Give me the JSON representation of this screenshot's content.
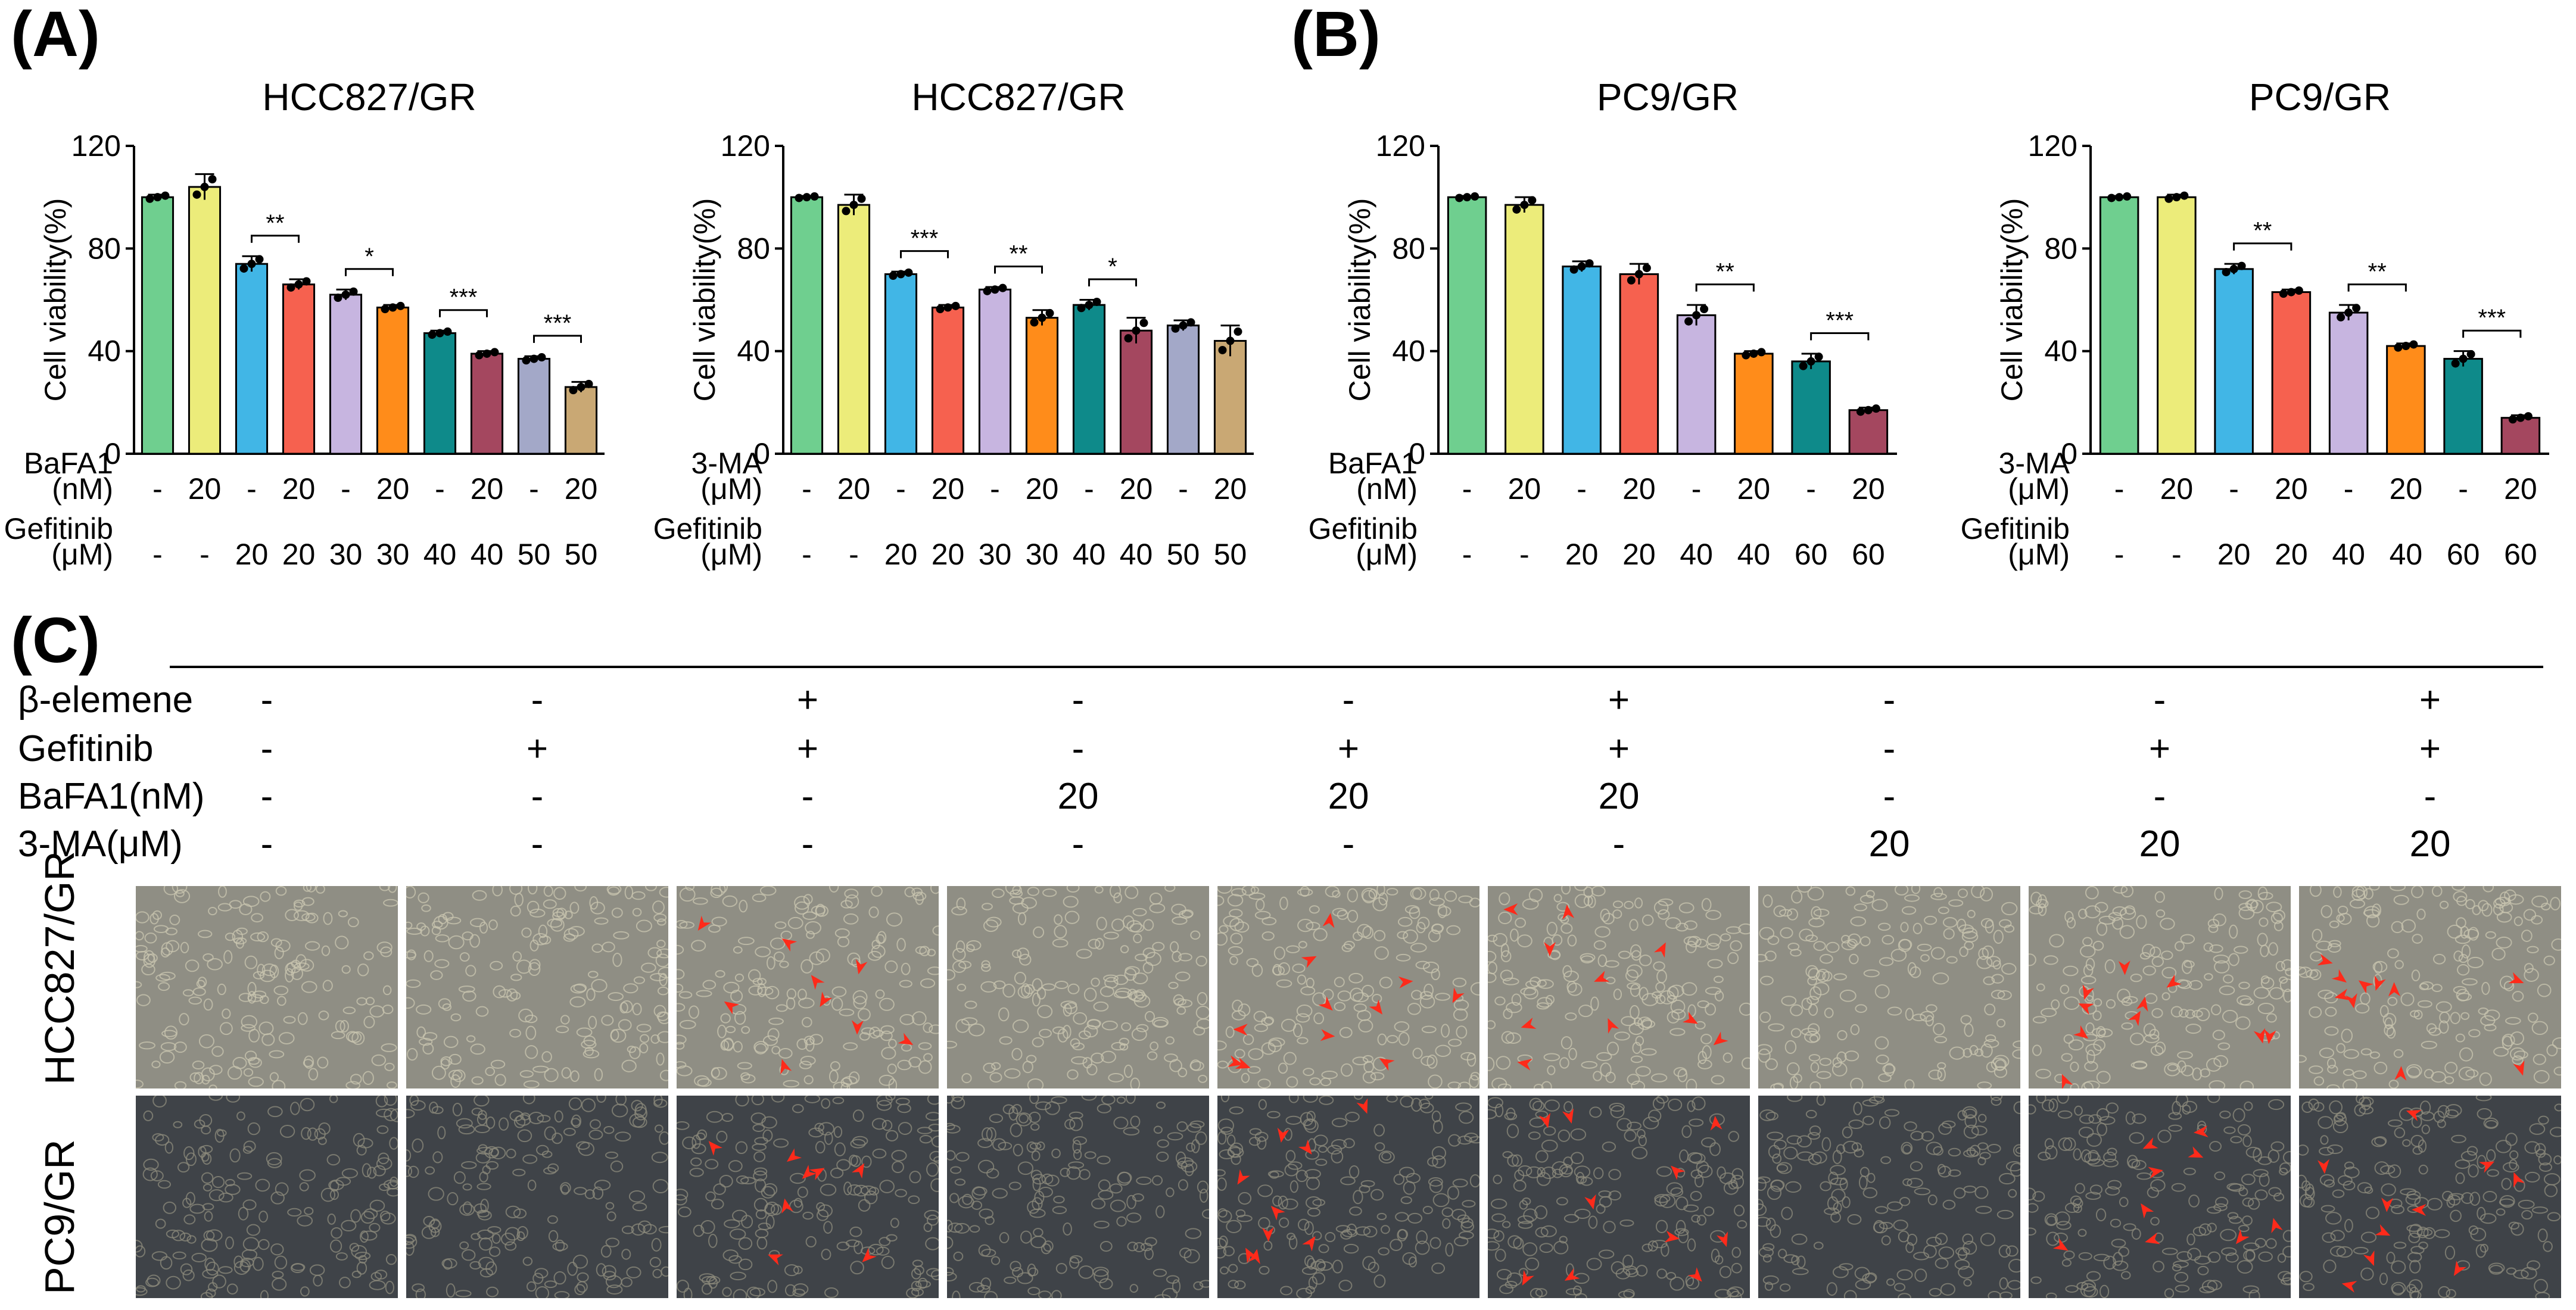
{
  "panels": {
    "a": "(A)",
    "b": "(B)",
    "c": "(C)"
  },
  "chart_data": [
    {
      "type": "bar",
      "title": "HCC827/GR",
      "ylabel": "Cell viability(%)",
      "ylim": [
        0,
        120
      ],
      "yticks": [
        0,
        40,
        80,
        120
      ],
      "values": [
        100,
        104,
        74,
        66,
        62,
        57,
        47,
        39,
        37,
        26
      ],
      "errors": [
        1,
        5,
        3,
        2,
        2,
        1,
        1,
        1,
        1,
        2
      ],
      "colors": [
        "#6fcf8f",
        "#ecec7a",
        "#41b6e6",
        "#f6614f",
        "#c7b5e0",
        "#ff8c1a",
        "#0e8a8a",
        "#a4475f",
        "#a3a8c8",
        "#c9a874"
      ],
      "row_labels": [
        [
          "BaFA1",
          "(nM)"
        ],
        [
          "Gefitinib",
          "(μM)"
        ]
      ],
      "rows": [
        [
          "-",
          "20",
          "-",
          "20",
          "-",
          "20",
          "-",
          "20",
          "-",
          "20"
        ],
        [
          "-",
          "-",
          "20",
          "20",
          "30",
          "30",
          "40",
          "40",
          "50",
          "50"
        ]
      ],
      "sig": [
        {
          "i": 2,
          "j": 3,
          "text": "**"
        },
        {
          "i": 4,
          "j": 5,
          "text": "*"
        },
        {
          "i": 6,
          "j": 7,
          "text": "***"
        },
        {
          "i": 8,
          "j": 9,
          "text": "***"
        }
      ]
    },
    {
      "type": "bar",
      "title": "HCC827/GR",
      "ylabel": "Cell viability(%)",
      "ylim": [
        0,
        120
      ],
      "yticks": [
        0,
        40,
        80,
        120
      ],
      "values": [
        100,
        97,
        70,
        57,
        64,
        53,
        58,
        48,
        50,
        44
      ],
      "errors": [
        0.5,
        4,
        1,
        1,
        1,
        3,
        2,
        5,
        2,
        6
      ],
      "colors": [
        "#6fcf8f",
        "#ecec7a",
        "#41b6e6",
        "#f6614f",
        "#c7b5e0",
        "#ff8c1a",
        "#0e8a8a",
        "#a4475f",
        "#a3a8c8",
        "#c9a874"
      ],
      "row_labels": [
        [
          "3-MA",
          "(μM)"
        ],
        [
          "Gefitinib",
          "(μM)"
        ]
      ],
      "rows": [
        [
          "-",
          "20",
          "-",
          "20",
          "-",
          "20",
          "-",
          "20",
          "-",
          "20"
        ],
        [
          "-",
          "-",
          "20",
          "20",
          "30",
          "30",
          "40",
          "40",
          "50",
          "50"
        ]
      ],
      "sig": [
        {
          "i": 2,
          "j": 3,
          "text": "***"
        },
        {
          "i": 4,
          "j": 5,
          "text": "**"
        },
        {
          "i": 6,
          "j": 7,
          "text": "*"
        }
      ]
    },
    {
      "type": "bar",
      "title": "PC9/GR",
      "ylabel": "Cell viability(%)",
      "ylim": [
        0,
        120
      ],
      "yticks": [
        0,
        40,
        80,
        120
      ],
      "values": [
        100,
        97,
        73,
        70,
        54,
        39,
        36,
        17
      ],
      "errors": [
        0.5,
        3,
        2,
        4,
        4,
        1,
        3,
        1
      ],
      "colors": [
        "#6fcf8f",
        "#ecec7a",
        "#41b6e6",
        "#f6614f",
        "#c7b5e0",
        "#ff8c1a",
        "#0e8a8a",
        "#a4475f"
      ],
      "row_labels": [
        [
          "BaFA1",
          "(nM)"
        ],
        [
          "Gefitinib",
          "(μM)"
        ]
      ],
      "rows": [
        [
          "-",
          "20",
          "-",
          "20",
          "-",
          "20",
          "-",
          "20"
        ],
        [
          "-",
          "-",
          "20",
          "20",
          "40",
          "40",
          "60",
          "60"
        ]
      ],
      "sig": [
        {
          "i": 4,
          "j": 5,
          "text": "**"
        },
        {
          "i": 6,
          "j": 7,
          "text": "***"
        }
      ]
    },
    {
      "type": "bar",
      "title": "PC9/GR",
      "ylabel": "Cell viability(%)",
      "ylim": [
        0,
        120
      ],
      "yticks": [
        0,
        40,
        80,
        120
      ],
      "values": [
        100,
        100,
        72,
        63,
        55,
        42,
        37,
        14
      ],
      "errors": [
        0.5,
        1,
        2,
        1,
        3,
        1,
        3,
        1
      ],
      "colors": [
        "#6fcf8f",
        "#ecec7a",
        "#41b6e6",
        "#f6614f",
        "#c7b5e0",
        "#ff8c1a",
        "#0e8a8a",
        "#a4475f"
      ],
      "row_labels": [
        [
          "3-MA",
          "(μM)"
        ],
        [
          "Gefitinib",
          "(μM)"
        ]
      ],
      "rows": [
        [
          "-",
          "20",
          "-",
          "20",
          "-",
          "20",
          "-",
          "20"
        ],
        [
          "-",
          "-",
          "20",
          "20",
          "40",
          "40",
          "60",
          "60"
        ]
      ],
      "sig": [
        {
          "i": 2,
          "j": 3,
          "text": "**"
        },
        {
          "i": 4,
          "j": 5,
          "text": "**"
        },
        {
          "i": 6,
          "j": 7,
          "text": "***"
        }
      ]
    }
  ],
  "treatments": {
    "labels": [
      "β-elemene",
      "Gefitinib",
      "BaFA1(nM)",
      "3-MA(μM)"
    ],
    "rows": [
      [
        "-",
        "-",
        "+",
        "-",
        "-",
        "+",
        "-",
        "-",
        "+"
      ],
      [
        "-",
        "+",
        "+",
        "-",
        "+",
        "+",
        "-",
        "+",
        "+"
      ],
      [
        "-",
        "-",
        "-",
        "20",
        "20",
        "20",
        "-",
        "-",
        "-"
      ],
      [
        "-",
        "-",
        "-",
        "-",
        "-",
        "-",
        "20",
        "20",
        "20"
      ]
    ]
  },
  "image_rows": {
    "labels": [
      "HCC827/GR",
      "PC9/GR"
    ],
    "columns": 9,
    "arrow_counts": [
      [
        0,
        0,
        9,
        0,
        11,
        10,
        0,
        10,
        10
      ],
      [
        0,
        0,
        8,
        0,
        9,
        10,
        0,
        9,
        10
      ]
    ]
  }
}
